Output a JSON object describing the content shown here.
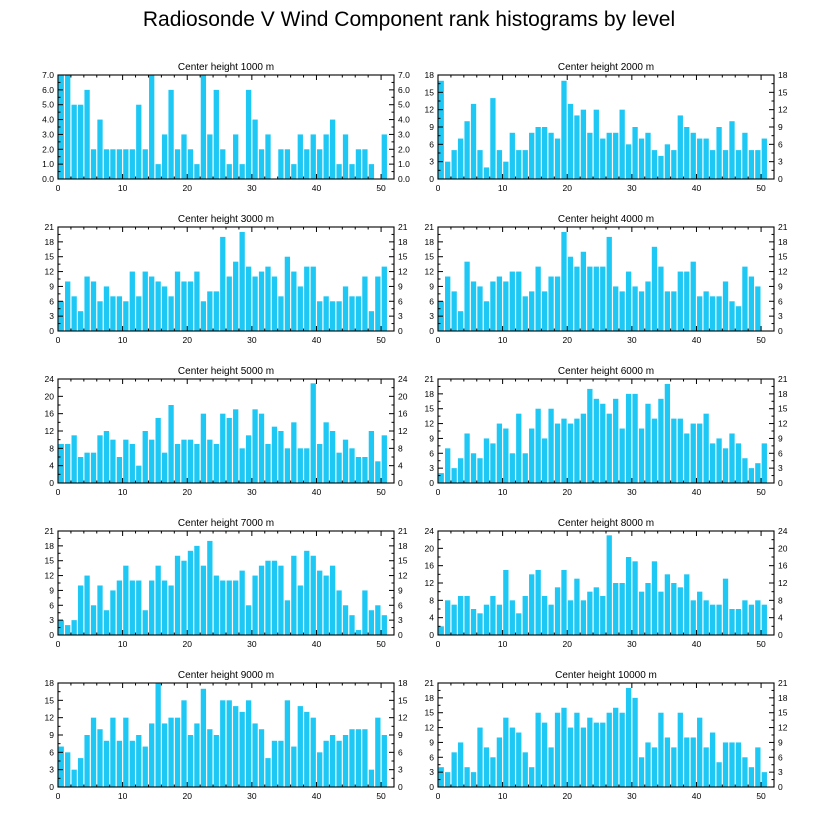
{
  "title": "Radiosonde V Wind Component rank histograms by level",
  "colors": {
    "bar": "#1EC8F5",
    "axis": "#000000"
  },
  "chart_data": [
    {
      "type": "bar",
      "title": "Center height 1000 m",
      "x": [
        0,
        1,
        2,
        3,
        4,
        5,
        6,
        7,
        8,
        9,
        10,
        11,
        12,
        13,
        14,
        15,
        16,
        17,
        18,
        19,
        20,
        21,
        22,
        23,
        24,
        25,
        26,
        27,
        28,
        29,
        30,
        31,
        32,
        33,
        34,
        35,
        36,
        37,
        38,
        39,
        40,
        41,
        42,
        43,
        44,
        45,
        46,
        47,
        48,
        49,
        50,
        51
      ],
      "values": [
        7,
        7,
        5,
        5,
        6,
        2,
        4,
        2,
        2,
        2,
        2,
        2,
        5,
        2,
        7,
        1,
        3,
        6,
        2,
        3,
        2,
        1,
        7,
        3,
        6,
        2,
        1,
        3,
        1,
        6,
        4,
        2,
        3,
        0,
        2,
        2,
        1,
        3,
        2,
        3,
        2,
        3,
        4,
        1,
        3,
        1,
        2,
        2,
        1,
        0,
        3,
        0
      ],
      "xlim": [
        0,
        52
      ],
      "ylim": [
        0,
        7
      ],
      "xticks": [
        "0",
        "10",
        "20",
        "30",
        "40",
        "50"
      ],
      "yticks": [
        "0.0",
        "1.0",
        "2.0",
        "3.0",
        "4.0",
        "5.0",
        "6.0",
        "7.0"
      ]
    },
    {
      "type": "bar",
      "title": "Center height 2000 m",
      "x": [
        0,
        1,
        2,
        3,
        4,
        5,
        6,
        7,
        8,
        9,
        10,
        11,
        12,
        13,
        14,
        15,
        16,
        17,
        18,
        19,
        20,
        21,
        22,
        23,
        24,
        25,
        26,
        27,
        28,
        29,
        30,
        31,
        32,
        33,
        34,
        35,
        36,
        37,
        38,
        39,
        40,
        41,
        42,
        43,
        44,
        45,
        46,
        47,
        48,
        49,
        50,
        51
      ],
      "values": [
        17,
        3,
        5,
        7,
        10,
        13,
        5,
        2,
        14,
        5,
        3,
        8,
        5,
        5,
        8,
        9,
        9,
        8,
        7,
        17,
        13,
        11,
        12,
        8,
        12,
        7,
        8,
        8,
        12,
        6,
        9,
        7,
        8,
        5,
        4,
        6,
        5,
        11,
        9,
        8,
        7,
        7,
        5,
        9,
        5,
        10,
        5,
        8,
        5,
        5,
        7,
        0
      ],
      "xlim": [
        0,
        52
      ],
      "ylim": [
        0,
        18
      ],
      "xticks": [
        "0",
        "10",
        "20",
        "30",
        "40",
        "50"
      ],
      "yticks": [
        "0",
        "3",
        "6",
        "9",
        "12",
        "15",
        "18"
      ]
    },
    {
      "type": "bar",
      "title": "Center height 3000 m",
      "x": [
        0,
        1,
        2,
        3,
        4,
        5,
        6,
        7,
        8,
        9,
        10,
        11,
        12,
        13,
        14,
        15,
        16,
        17,
        18,
        19,
        20,
        21,
        22,
        23,
        24,
        25,
        26,
        27,
        28,
        29,
        30,
        31,
        32,
        33,
        34,
        35,
        36,
        37,
        38,
        39,
        40,
        41,
        42,
        43,
        44,
        45,
        46,
        47,
        48,
        49,
        50,
        51
      ],
      "values": [
        6,
        10,
        7,
        4,
        11,
        10,
        6,
        9,
        7,
        7,
        6,
        12,
        7,
        12,
        11,
        10,
        9,
        7,
        12,
        10,
        10,
        12,
        6,
        8,
        8,
        19,
        11,
        14,
        20,
        13,
        11,
        12,
        13,
        11,
        7,
        15,
        12,
        9,
        13,
        13,
        6,
        7,
        6,
        6,
        9,
        7,
        7,
        11,
        4,
        11,
        13,
        0
      ],
      "xlim": [
        0,
        52
      ],
      "ylim": [
        0,
        21
      ],
      "xticks": [
        "0",
        "10",
        "20",
        "30",
        "40",
        "50"
      ],
      "yticks": [
        "0",
        "3",
        "6",
        "9",
        "12",
        "15",
        "18",
        "21"
      ]
    },
    {
      "type": "bar",
      "title": "Center height 4000 m",
      "x": [
        0,
        1,
        2,
        3,
        4,
        5,
        6,
        7,
        8,
        9,
        10,
        11,
        12,
        13,
        14,
        15,
        16,
        17,
        18,
        19,
        20,
        21,
        22,
        23,
        24,
        25,
        26,
        27,
        28,
        29,
        30,
        31,
        32,
        33,
        34,
        35,
        36,
        37,
        38,
        39,
        40,
        41,
        42,
        43,
        44,
        45,
        46,
        47,
        48,
        49,
        50,
        51
      ],
      "values": [
        6,
        11,
        8,
        4,
        14,
        10,
        9,
        6,
        10,
        11,
        10,
        12,
        12,
        7,
        8,
        13,
        8,
        11,
        11,
        20,
        15,
        13,
        16,
        13,
        13,
        13,
        19,
        9,
        8,
        12,
        9,
        8,
        10,
        17,
        13,
        8,
        8,
        12,
        12,
        14,
        7,
        8,
        7,
        7,
        10,
        6,
        5,
        13,
        11,
        9,
        0,
        0
      ],
      "xlim": [
        0,
        52
      ],
      "ylim": [
        0,
        21
      ],
      "xticks": [
        "0",
        "10",
        "20",
        "30",
        "40",
        "50"
      ],
      "yticks": [
        "0",
        "3",
        "6",
        "9",
        "12",
        "15",
        "18",
        "21"
      ]
    },
    {
      "type": "bar",
      "title": "Center height 5000 m",
      "x": [
        0,
        1,
        2,
        3,
        4,
        5,
        6,
        7,
        8,
        9,
        10,
        11,
        12,
        13,
        14,
        15,
        16,
        17,
        18,
        19,
        20,
        21,
        22,
        23,
        24,
        25,
        26,
        27,
        28,
        29,
        30,
        31,
        32,
        33,
        34,
        35,
        36,
        37,
        38,
        39,
        40,
        41,
        42,
        43,
        44,
        45,
        46,
        47,
        48,
        49,
        50,
        51
      ],
      "values": [
        9,
        9,
        11,
        6,
        7,
        7,
        11,
        12,
        10,
        6,
        10,
        9,
        4,
        12,
        10,
        15,
        7,
        18,
        9,
        10,
        10,
        9,
        16,
        10,
        9,
        16,
        15,
        17,
        8,
        11,
        17,
        16,
        9,
        13,
        12,
        8,
        14,
        8,
        8,
        23,
        9,
        14,
        12,
        7,
        10,
        8,
        6,
        6,
        12,
        5,
        11,
        0
      ],
      "xlim": [
        0,
        52
      ],
      "ylim": [
        0,
        24
      ],
      "xticks": [
        "0",
        "10",
        "20",
        "30",
        "40",
        "50"
      ],
      "yticks": [
        "0",
        "4",
        "8",
        "12",
        "16",
        "20",
        "24"
      ]
    },
    {
      "type": "bar",
      "title": "Center height 6000 m",
      "x": [
        0,
        1,
        2,
        3,
        4,
        5,
        6,
        7,
        8,
        9,
        10,
        11,
        12,
        13,
        14,
        15,
        16,
        17,
        18,
        19,
        20,
        21,
        22,
        23,
        24,
        25,
        26,
        27,
        28,
        29,
        30,
        31,
        32,
        33,
        34,
        35,
        36,
        37,
        38,
        39,
        40,
        41,
        42,
        43,
        44,
        45,
        46,
        47,
        48,
        49,
        50,
        51
      ],
      "values": [
        2,
        7,
        3,
        5,
        10,
        6,
        5,
        9,
        8,
        12,
        11,
        6,
        14,
        6,
        11,
        15,
        9,
        15,
        12,
        13,
        12,
        13,
        14,
        19,
        17,
        16,
        14,
        17,
        11,
        18,
        18,
        11,
        16,
        13,
        17,
        20,
        13,
        13,
        10,
        12,
        12,
        14,
        8,
        9,
        7,
        10,
        8,
        5,
        3,
        4,
        8,
        0
      ],
      "xlim": [
        0,
        52
      ],
      "ylim": [
        0,
        21
      ],
      "xticks": [
        "0",
        "10",
        "20",
        "30",
        "40",
        "50"
      ],
      "yticks": [
        "0",
        "3",
        "6",
        "9",
        "12",
        "15",
        "18",
        "21"
      ]
    },
    {
      "type": "bar",
      "title": "Center height 7000 m",
      "x": [
        0,
        1,
        2,
        3,
        4,
        5,
        6,
        7,
        8,
        9,
        10,
        11,
        12,
        13,
        14,
        15,
        16,
        17,
        18,
        19,
        20,
        21,
        22,
        23,
        24,
        25,
        26,
        27,
        28,
        29,
        30,
        31,
        32,
        33,
        34,
        35,
        36,
        37,
        38,
        39,
        40,
        41,
        42,
        43,
        44,
        45,
        46,
        47,
        48,
        49,
        50,
        51
      ],
      "values": [
        3,
        2,
        3,
        10,
        12,
        6,
        10,
        5,
        9,
        11,
        14,
        11,
        11,
        5,
        11,
        14,
        11,
        10,
        16,
        15,
        17,
        18,
        14,
        19,
        12,
        11,
        11,
        11,
        13,
        6,
        12,
        14,
        15,
        15,
        14,
        7,
        16,
        10,
        17,
        16,
        13,
        12,
        14,
        9,
        6,
        4,
        1,
        9,
        5,
        6,
        4,
        0
      ],
      "xlim": [
        0,
        52
      ],
      "ylim": [
        0,
        21
      ],
      "xticks": [
        "0",
        "10",
        "20",
        "30",
        "40",
        "50"
      ],
      "yticks": [
        "0",
        "3",
        "6",
        "9",
        "12",
        "15",
        "18",
        "21"
      ]
    },
    {
      "type": "bar",
      "title": "Center height 8000 m",
      "x": [
        0,
        1,
        2,
        3,
        4,
        5,
        6,
        7,
        8,
        9,
        10,
        11,
        12,
        13,
        14,
        15,
        16,
        17,
        18,
        19,
        20,
        21,
        22,
        23,
        24,
        25,
        26,
        27,
        28,
        29,
        30,
        31,
        32,
        33,
        34,
        35,
        36,
        37,
        38,
        39,
        40,
        41,
        42,
        43,
        44,
        45,
        46,
        47,
        48,
        49,
        50,
        51
      ],
      "values": [
        2,
        8,
        7,
        9,
        9,
        6,
        5,
        7,
        9,
        7,
        15,
        8,
        5,
        9,
        14,
        15,
        9,
        7,
        11,
        15,
        8,
        13,
        8,
        10,
        11,
        9,
        23,
        12,
        12,
        18,
        17,
        10,
        12,
        17,
        10,
        14,
        12,
        11,
        14,
        8,
        10,
        8,
        7,
        7,
        13,
        6,
        6,
        8,
        7,
        8,
        7,
        0
      ],
      "xlim": [
        0,
        52
      ],
      "ylim": [
        0,
        24
      ],
      "xticks": [
        "0",
        "10",
        "20",
        "30",
        "40",
        "50"
      ],
      "yticks": [
        "0",
        "4",
        "8",
        "12",
        "16",
        "20",
        "24"
      ]
    },
    {
      "type": "bar",
      "title": "Center height 9000 m",
      "x": [
        0,
        1,
        2,
        3,
        4,
        5,
        6,
        7,
        8,
        9,
        10,
        11,
        12,
        13,
        14,
        15,
        16,
        17,
        18,
        19,
        20,
        21,
        22,
        23,
        24,
        25,
        26,
        27,
        28,
        29,
        30,
        31,
        32,
        33,
        34,
        35,
        36,
        37,
        38,
        39,
        40,
        41,
        42,
        43,
        44,
        45,
        46,
        47,
        48,
        49,
        50,
        51
      ],
      "values": [
        7,
        6,
        3,
        5,
        9,
        12,
        10,
        8,
        12,
        8,
        12,
        8,
        9,
        7,
        11,
        18,
        11,
        12,
        12,
        15,
        9,
        11,
        17,
        10,
        9,
        15,
        15,
        14,
        13,
        15,
        11,
        10,
        5,
        8,
        8,
        15,
        7,
        14,
        13,
        12,
        6,
        8,
        9,
        8,
        9,
        10,
        10,
        10,
        3,
        12,
        9,
        0
      ],
      "xlim": [
        0,
        52
      ],
      "ylim": [
        0,
        18
      ],
      "xticks": [
        "0",
        "10",
        "20",
        "30",
        "40",
        "50"
      ],
      "yticks": [
        "0",
        "3",
        "6",
        "9",
        "12",
        "15",
        "18"
      ]
    },
    {
      "type": "bar",
      "title": "Center height 10000 m",
      "x": [
        0,
        1,
        2,
        3,
        4,
        5,
        6,
        7,
        8,
        9,
        10,
        11,
        12,
        13,
        14,
        15,
        16,
        17,
        18,
        19,
        20,
        21,
        22,
        23,
        24,
        25,
        26,
        27,
        28,
        29,
        30,
        31,
        32,
        33,
        34,
        35,
        36,
        37,
        38,
        39,
        40,
        41,
        42,
        43,
        44,
        45,
        46,
        47,
        48,
        49,
        50,
        51
      ],
      "values": [
        4,
        3,
        7,
        9,
        4,
        3,
        12,
        8,
        6,
        10,
        14,
        12,
        11,
        7,
        4,
        15,
        13,
        8,
        15,
        16,
        12,
        15,
        12,
        14,
        13,
        13,
        15,
        16,
        15,
        20,
        18,
        6,
        9,
        8,
        15,
        10,
        8,
        15,
        10,
        10,
        14,
        8,
        11,
        5,
        9,
        9,
        9,
        6,
        4,
        8,
        3,
        0
      ],
      "xlim": [
        0,
        52
      ],
      "ylim": [
        0,
        21
      ],
      "xticks": [
        "0",
        "10",
        "20",
        "30",
        "40",
        "50"
      ],
      "yticks": [
        "0",
        "3",
        "6",
        "9",
        "12",
        "15",
        "18",
        "21"
      ]
    }
  ]
}
